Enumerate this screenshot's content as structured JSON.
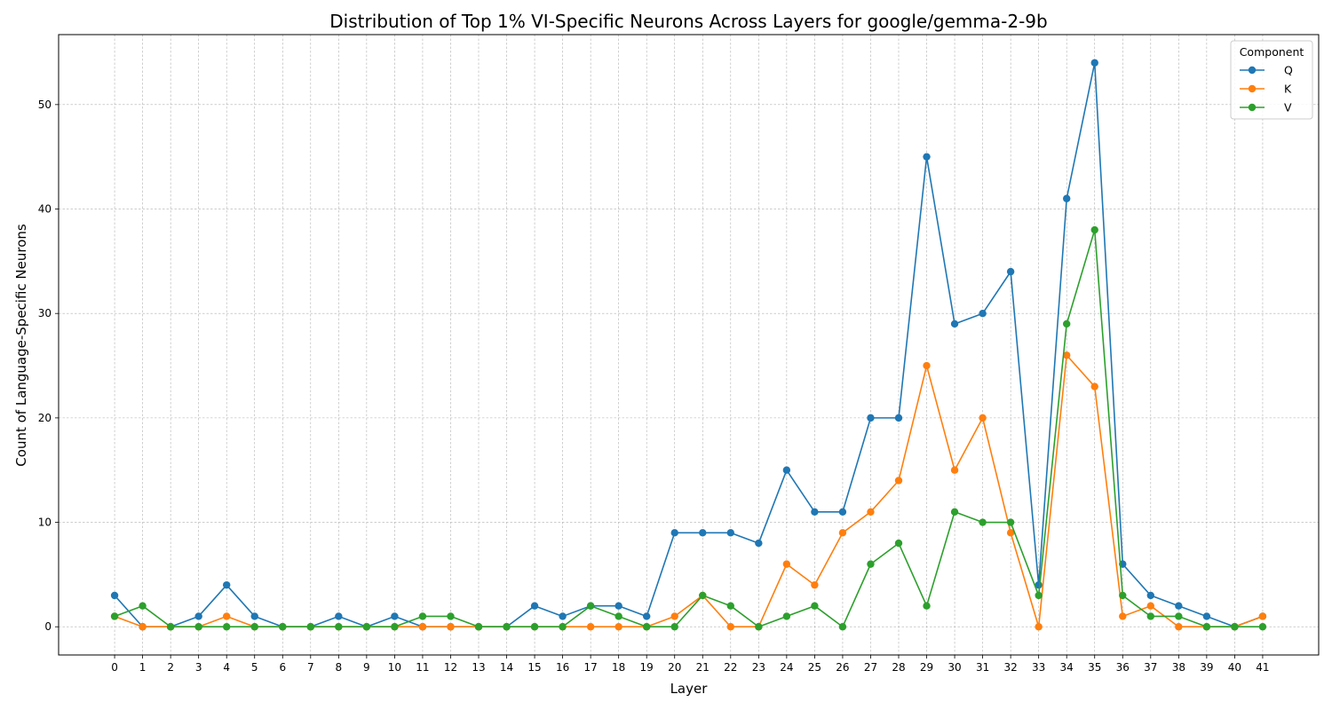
{
  "chart_data": {
    "type": "line",
    "title": "Distribution of Top 1% VI-Specific Neurons Across Layers for google/gemma-2-9b",
    "xlabel": "Layer",
    "ylabel": "Count of Language-Specific Neurons",
    "x": [
      0,
      1,
      2,
      3,
      4,
      5,
      6,
      7,
      8,
      9,
      10,
      11,
      12,
      13,
      14,
      15,
      16,
      17,
      18,
      19,
      20,
      21,
      22,
      23,
      24,
      25,
      26,
      27,
      28,
      29,
      30,
      31,
      32,
      33,
      34,
      35,
      36,
      37,
      38,
      39,
      40,
      41
    ],
    "x_tick_labels": [
      "0",
      "1",
      "2",
      "3",
      "4",
      "5",
      "6",
      "7",
      "8",
      "9",
      "10",
      "11",
      "12",
      "13",
      "14",
      "15",
      "16",
      "17",
      "18",
      "19",
      "20",
      "21",
      "22",
      "23",
      "24",
      "25",
      "26",
      "27",
      "28",
      "29",
      "30",
      "31",
      "32",
      "33",
      "34",
      "35",
      "36",
      "37",
      "38",
      "39",
      "40",
      "41"
    ],
    "xlim": [
      -2,
      43
    ],
    "ylim": [
      -2.7,
      56.7
    ],
    "yticks": [
      0,
      10,
      20,
      30,
      40,
      50
    ],
    "y_tick_labels": [
      "0",
      "10",
      "20",
      "30",
      "40",
      "50"
    ],
    "grid": true,
    "legend": {
      "title": "Component",
      "placement": "top-right"
    },
    "series": [
      {
        "name": "Q",
        "color": "#1f77b4",
        "values": [
          3,
          0,
          0,
          1,
          4,
          1,
          0,
          0,
          1,
          0,
          1,
          0,
          0,
          0,
          0,
          2,
          1,
          2,
          2,
          1,
          9,
          9,
          9,
          8,
          15,
          11,
          11,
          20,
          20,
          45,
          29,
          30,
          34,
          4,
          41,
          54,
          6,
          3,
          2,
          1,
          0,
          1
        ]
      },
      {
        "name": "K",
        "color": "#ff7f0e",
        "values": [
          1,
          0,
          0,
          0,
          1,
          0,
          0,
          0,
          0,
          0,
          0,
          0,
          0,
          0,
          0,
          0,
          0,
          0,
          0,
          0,
          1,
          3,
          0,
          0,
          6,
          4,
          9,
          11,
          14,
          25,
          15,
          20,
          9,
          0,
          26,
          23,
          1,
          2,
          0,
          0,
          0,
          1
        ]
      },
      {
        "name": "V",
        "color": "#2ca02c",
        "values": [
          1,
          2,
          0,
          0,
          0,
          0,
          0,
          0,
          0,
          0,
          0,
          1,
          1,
          0,
          0,
          0,
          0,
          2,
          1,
          0,
          0,
          3,
          2,
          0,
          1,
          2,
          0,
          6,
          8,
          2,
          11,
          10,
          10,
          3,
          29,
          38,
          3,
          1,
          1,
          0,
          0,
          0
        ]
      }
    ]
  }
}
